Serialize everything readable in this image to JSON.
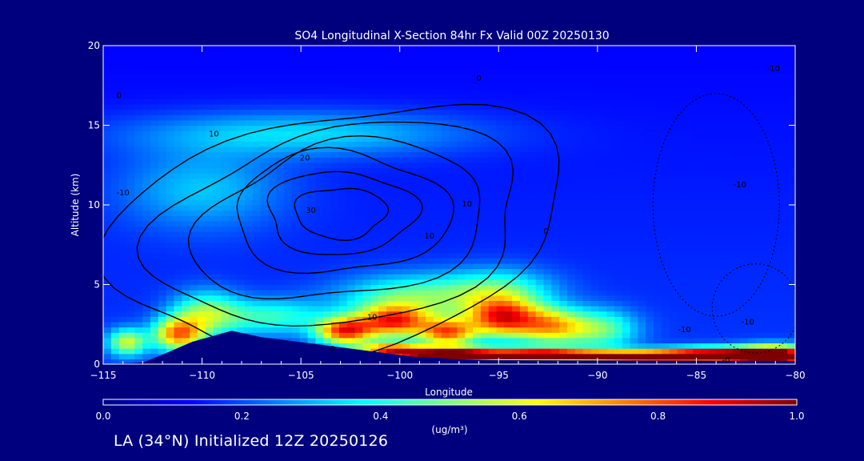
{
  "chart_data": {
    "type": "heatmap",
    "title": "SO4 Longitudinal X-Section 84hr  Fx Valid 00Z 20250130",
    "xlabel": "Longitude",
    "ylabel": "Altitude (km)",
    "xlim": [
      -115,
      -80
    ],
    "ylim": [
      0,
      20
    ],
    "x_ticks": [
      -115,
      -110,
      -105,
      -100,
      -95,
      -90,
      -85,
      -80
    ],
    "x_tick_labels": [
      "−115",
      "−110",
      "−105",
      "−100",
      "−95",
      "−90",
      "−85",
      "−80"
    ],
    "y_ticks": [
      0,
      5,
      10,
      15,
      20
    ],
    "y_tick_labels": [
      "0",
      "5",
      "10",
      "15",
      "20"
    ],
    "colorbar": {
      "label": "(ug/m³)",
      "range": [
        0.0,
        1.0
      ],
      "ticks": [
        0.0,
        0.2,
        0.4,
        0.6,
        0.8,
        1.0
      ],
      "tick_labels": [
        "0.0",
        "0.2",
        "0.4",
        "0.6",
        "0.8",
        "1.0"
      ],
      "colormap": [
        "#00007f",
        "#0000ff",
        "#007fff",
        "#00ffff",
        "#7fff7f",
        "#ffff00",
        "#ff7f00",
        "#ff0000",
        "#7f0000"
      ]
    },
    "terrain": [
      {
        "lon": -115,
        "alt": 0.0
      },
      {
        "lon": -113,
        "alt": 0.1
      },
      {
        "lon": -112,
        "alt": 0.6
      },
      {
        "lon": -110.5,
        "alt": 1.4
      },
      {
        "lon": -108.5,
        "alt": 2.1
      },
      {
        "lon": -107,
        "alt": 1.7
      },
      {
        "lon": -104.5,
        "alt": 1.3
      },
      {
        "lon": -102,
        "alt": 0.9
      },
      {
        "lon": -99.5,
        "alt": 0.5
      },
      {
        "lon": -97,
        "alt": 0.3
      },
      {
        "lon": -95,
        "alt": 0.25
      },
      {
        "lon": -80,
        "alt": 0.2
      }
    ],
    "blobs": [
      {
        "lon": -111.2,
        "alt": 1.9,
        "value": 0.55,
        "slon": 0.9,
        "salt": 0.75
      },
      {
        "lon": -113.8,
        "alt": 1.4,
        "value": 0.4,
        "slon": 0.7,
        "salt": 0.6
      },
      {
        "lon": -109.8,
        "alt": 3.2,
        "value": 0.32,
        "slon": 1.2,
        "salt": 1.0
      },
      {
        "lon": -102.8,
        "alt": 2.1,
        "value": 0.62,
        "slon": 1.0,
        "salt": 0.6
      },
      {
        "lon": -100.3,
        "alt": 2.7,
        "value": 0.6,
        "slon": 1.3,
        "salt": 0.7
      },
      {
        "lon": -97.6,
        "alt": 2.0,
        "value": 0.55,
        "slon": 1.0,
        "salt": 0.6
      },
      {
        "lon": -94.8,
        "alt": 2.9,
        "value": 0.62,
        "slon": 1.3,
        "salt": 0.85
      },
      {
        "lon": -92.3,
        "alt": 2.4,
        "value": 0.45,
        "slon": 1.2,
        "salt": 0.8
      },
      {
        "lon": -89.8,
        "alt": 2.2,
        "value": 0.3,
        "slon": 1.3,
        "salt": 0.9
      },
      {
        "lon": -99.5,
        "alt": 4.2,
        "value": 0.3,
        "slon": 2.5,
        "salt": 1.0
      },
      {
        "lon": -95.0,
        "alt": 4.6,
        "value": 0.28,
        "slon": 2.0,
        "salt": 1.0
      },
      {
        "lon": -106.5,
        "alt": 3.0,
        "value": 0.25,
        "slon": 2.0,
        "salt": 0.8
      },
      {
        "lon": -97.5,
        "alt": 0.55,
        "value": 0.95,
        "slon": 1.8,
        "salt": 0.35
      },
      {
        "lon": -93.0,
        "alt": 0.55,
        "value": 0.88,
        "slon": 2.0,
        "salt": 0.3
      },
      {
        "lon": -88.0,
        "alt": 0.45,
        "value": 0.82,
        "slon": 2.2,
        "salt": 0.3
      },
      {
        "lon": -84.0,
        "alt": 0.55,
        "value": 0.86,
        "slon": 2.0,
        "salt": 0.35
      },
      {
        "lon": -81.0,
        "alt": 0.5,
        "value": 0.95,
        "slon": 1.3,
        "salt": 0.45
      },
      {
        "lon": -100.5,
        "alt": 0.9,
        "value": 0.55,
        "slon": 1.2,
        "salt": 0.35
      },
      {
        "lon": -105.0,
        "alt": 14.5,
        "value": 0.2,
        "slon": 6.0,
        "salt": 1.0
      },
      {
        "lon": -110.0,
        "alt": 11.0,
        "value": 0.17,
        "slon": 3.0,
        "salt": 1.8
      }
    ],
    "contour_labels": [
      {
        "text": "-10",
        "lon": -81.1,
        "alt": 18.4
      },
      {
        "text": "0",
        "lon": -96.0,
        "alt": 17.8
      },
      {
        "text": "-10",
        "lon": -82.8,
        "alt": 11.1
      },
      {
        "text": "-10",
        "lon": -85.6,
        "alt": 2.0
      },
      {
        "text": "-10",
        "lon": -82.4,
        "alt": 2.5
      },
      {
        "text": "-0",
        "lon": -83.5,
        "alt": 0.1
      },
      {
        "text": "0",
        "lon": -114.2,
        "alt": 16.7
      },
      {
        "text": "10",
        "lon": -109.4,
        "alt": 14.3
      },
      {
        "text": "20",
        "lon": -104.8,
        "alt": 12.8
      },
      {
        "text": "30",
        "lon": -104.5,
        "alt": 9.5
      },
      {
        "text": "10",
        "lon": -98.5,
        "alt": 7.9
      },
      {
        "text": "10",
        "lon": -101.4,
        "alt": 2.8
      },
      {
        "text": "10",
        "lon": -96.6,
        "alt": 9.9
      },
      {
        "text": "-10",
        "lon": -114.0,
        "alt": 10.6
      },
      {
        "text": "0",
        "lon": -103.4,
        "alt": 0.8
      },
      {
        "text": "0",
        "lon": -92.6,
        "alt": 8.2
      }
    ]
  },
  "footer": "LA (34°N) Initialized 12Z 20250126"
}
